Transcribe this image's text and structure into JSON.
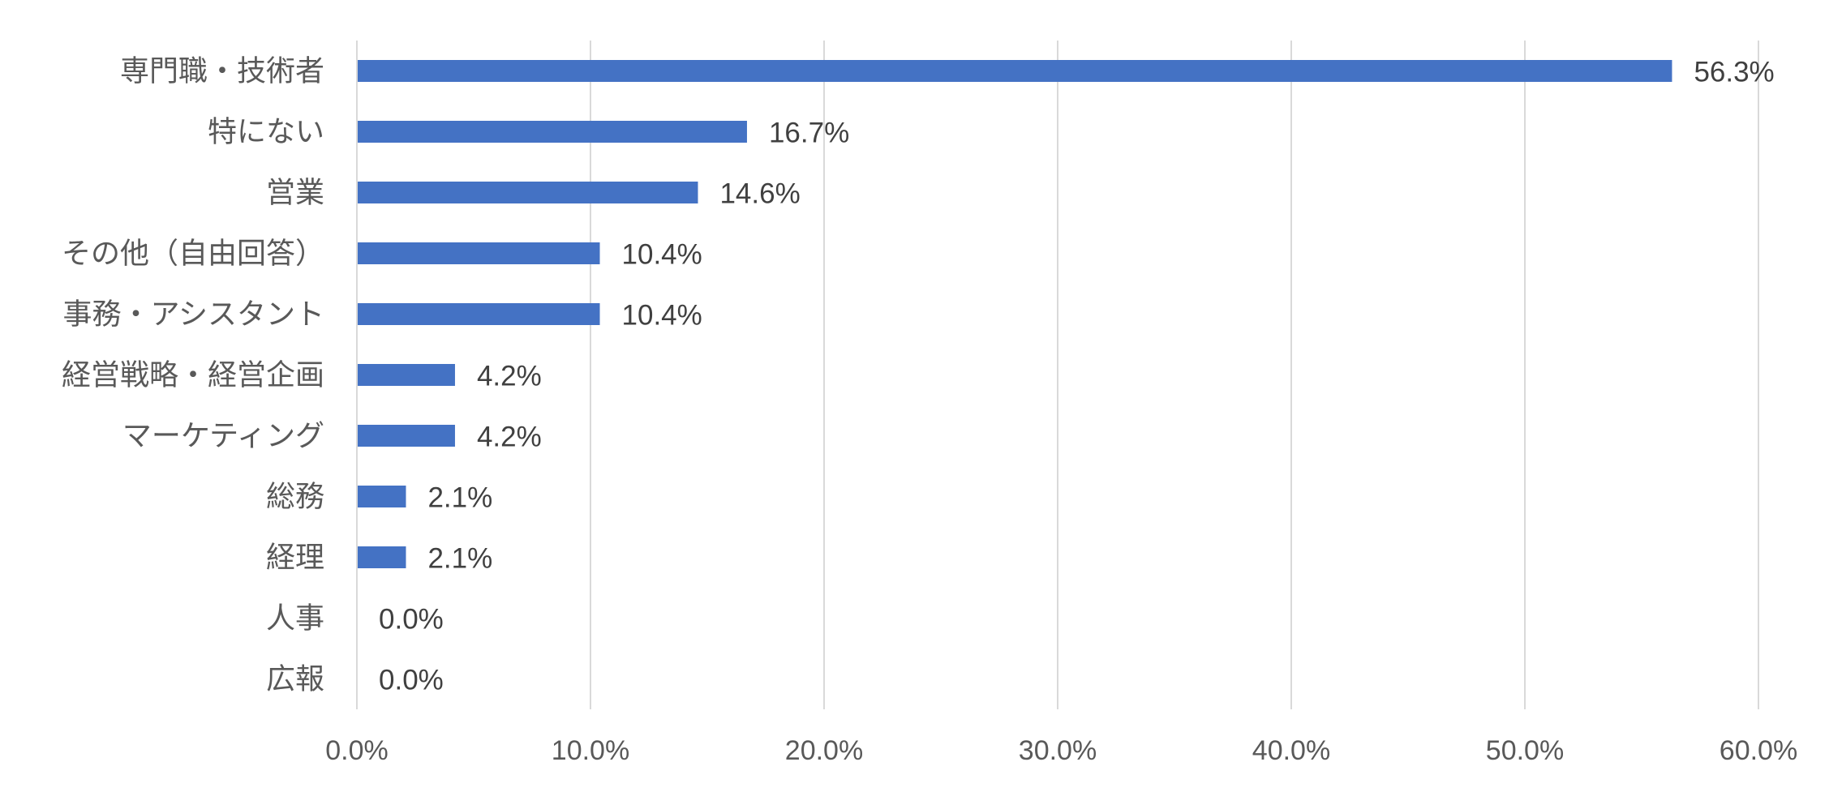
{
  "chart_data": {
    "type": "bar",
    "orientation": "horizontal",
    "categories": [
      "専門職・技術者",
      "特にない",
      "営業",
      "その他（自由回答）",
      "事務・アシスタント",
      "経営戦略・経営企画",
      "マーケティング",
      "総務",
      "経理",
      "人事",
      "広報"
    ],
    "values": [
      56.3,
      16.7,
      14.6,
      10.4,
      10.4,
      4.2,
      4.2,
      2.1,
      2.1,
      0.0,
      0.0
    ],
    "data_labels": [
      "56.3%",
      "16.7%",
      "14.6%",
      "10.4%",
      "10.4%",
      "4.2%",
      "4.2%",
      "2.1%",
      "2.1%",
      "0.0%",
      "0.0%"
    ],
    "xlim": [
      0,
      60
    ],
    "x_ticks": [
      0,
      10,
      20,
      30,
      40,
      50,
      60
    ],
    "x_tick_labels": [
      "0.0%",
      "10.0%",
      "20.0%",
      "30.0%",
      "40.0%",
      "50.0%",
      "60.0%"
    ],
    "grid": "vertical",
    "legend": "none",
    "title": "",
    "xlabel": "",
    "ylabel": "",
    "colors": {
      "bar": "#4472C4",
      "grid": "#D9D9D9",
      "axis_text": "#595959",
      "label_text": "#404040"
    }
  }
}
